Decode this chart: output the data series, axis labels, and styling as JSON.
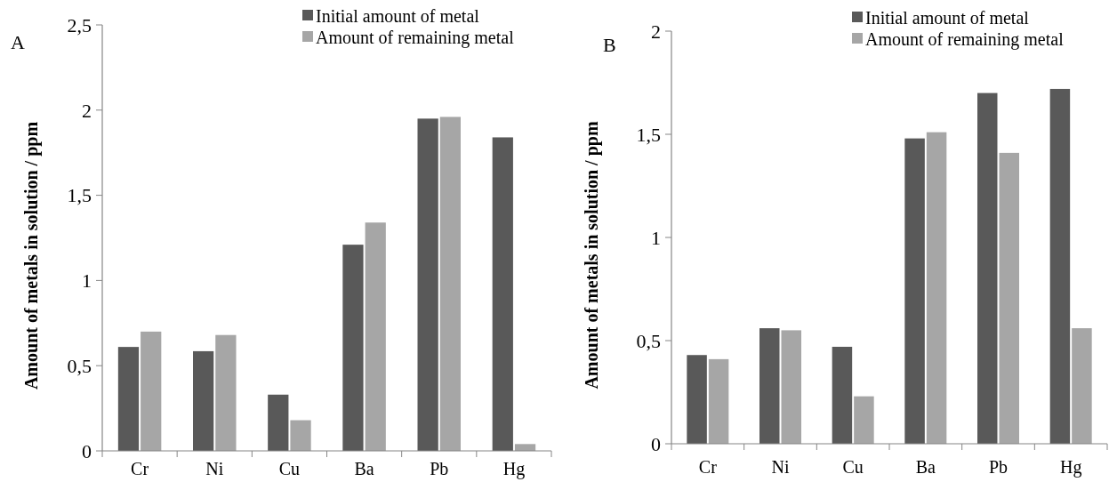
{
  "chart_data": [
    {
      "type": "bar",
      "title": "A",
      "ylabel": "Amount of metals in solution / ppm",
      "categories": [
        "Cr",
        "Ni",
        "Cu",
        "Ba",
        "Pb",
        "Hg"
      ],
      "series": [
        {
          "name": "Initial amount of metal",
          "color": "#595959",
          "values": [
            0.61,
            0.585,
            0.33,
            1.21,
            1.95,
            1.84
          ]
        },
        {
          "name": "Amount of remaining metal",
          "color": "#a6a6a6",
          "values": [
            0.7,
            0.68,
            0.18,
            1.34,
            1.96,
            0.04
          ]
        }
      ],
      "ylim": [
        0,
        2.5
      ],
      "yticks": [
        0,
        {
          "value": 0.5,
          "label": "0,5"
        },
        1,
        {
          "value": 1.5,
          "label": "1,5"
        },
        2,
        {
          "value": 2.5,
          "label": "2,5"
        }
      ],
      "grid": false,
      "legend": "top right"
    },
    {
      "type": "bar",
      "title": "B",
      "ylabel": "Amount of metals in solution / ppm",
      "categories": [
        "Cr",
        "Ni",
        "Cu",
        "Ba",
        "Pb",
        "Hg"
      ],
      "series": [
        {
          "name": "Initial amount of metal",
          "color": "#595959",
          "values": [
            0.43,
            0.56,
            0.47,
            1.48,
            1.7,
            1.72
          ]
        },
        {
          "name": "Amount of remaining metal",
          "color": "#a6a6a6",
          "values": [
            0.41,
            0.55,
            0.23,
            1.51,
            1.41,
            0.56
          ]
        }
      ],
      "ylim": [
        0,
        2
      ],
      "yticks": [
        0,
        {
          "value": 0.5,
          "label": "0,5"
        },
        1,
        {
          "value": 1.5,
          "label": "1,5"
        },
        2
      ],
      "grid": false,
      "legend": "top right"
    }
  ]
}
